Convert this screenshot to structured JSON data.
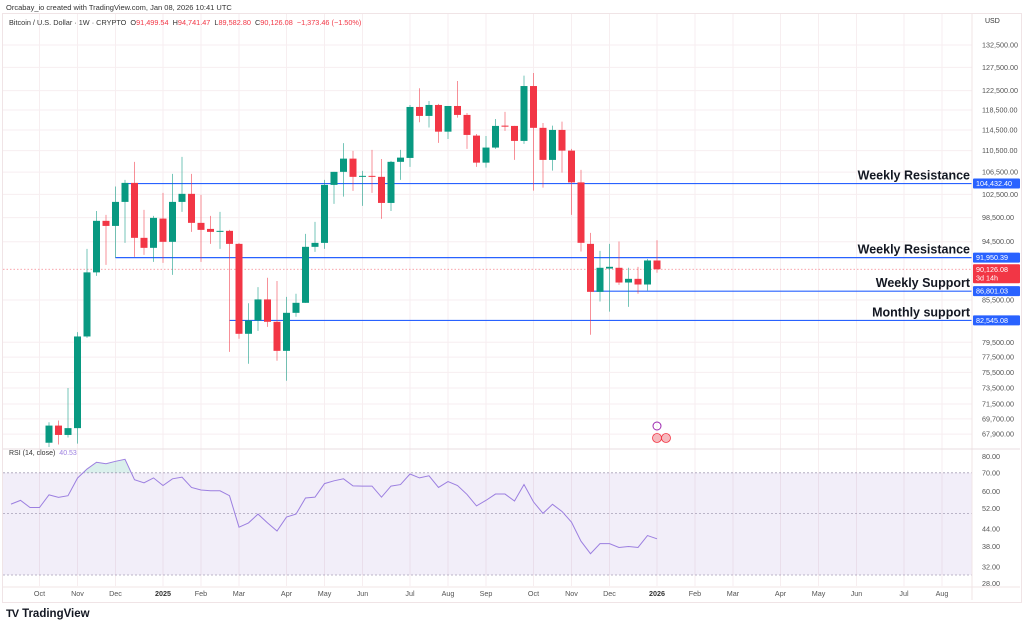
{
  "credit": "Orcabay_io created with TradingView.com, Jan 08, 2026 10:41 UTC",
  "symbol": {
    "title": "Bitcoin / U.S. Dollar · 1W · CRYPTO",
    "open_label": "O",
    "open": "91,499.54",
    "high_label": "H",
    "high": "94,741.47",
    "low_label": "L",
    "low": "89,582.80",
    "close_label": "C",
    "close": "90,126.08",
    "change": "−1,373.46 (−1.50%)"
  },
  "currency": "USD",
  "colors": {
    "up": "#089981",
    "down": "#f23645",
    "level": "#2962ff",
    "rsi": "#9c7fe0",
    "rsi_band": "#7e57c2"
  },
  "price_axis": [
    "132,500.00",
    "127,500.00",
    "122,500.00",
    "118,500.00",
    "114,500.00",
    "110,500.00",
    "106,500.00",
    "102,500.00",
    "98,500.00",
    "94,500.00",
    "85,500.00",
    "79,500.00",
    "77,500.00",
    "75,500.00",
    "73,500.00",
    "71,500.00",
    "69,700.00",
    "67,900.00"
  ],
  "price_axis_values": [
    132500,
    127500,
    122500,
    118500,
    114500,
    110500,
    106500,
    102500,
    98500,
    94500,
    85500,
    79500,
    77500,
    75500,
    73500,
    71500,
    69700,
    67900
  ],
  "levels": [
    {
      "label": "Weekly Resistance",
      "price": 104432.4,
      "tag": "104,432.40",
      "from_bar": 8
    },
    {
      "label": "Weekly Resistance",
      "price": 91950.39,
      "tag": "91,950.39",
      "from_bar": 7
    },
    {
      "label": "Weekly Support",
      "price": 86801.03,
      "tag": "86,801.03",
      "from_bar": 57
    },
    {
      "label": "Monthly support",
      "price": 82545.08,
      "tag": "82,545.08",
      "from_bar": 19
    }
  ],
  "current_price": {
    "price": 90126.08,
    "tag": "90,126.08",
    "countdown": "3d 14h"
  },
  "time_axis": [
    {
      "label": "Oct",
      "bar": -1
    },
    {
      "label": "Nov",
      "bar": 3
    },
    {
      "label": "Dec",
      "bar": 7
    },
    {
      "label": "2025",
      "bar": 12,
      "bold": true
    },
    {
      "label": "Feb",
      "bar": 16
    },
    {
      "label": "Mar",
      "bar": 20
    },
    {
      "label": "Apr",
      "bar": 25
    },
    {
      "label": "May",
      "bar": 29
    },
    {
      "label": "Jun",
      "bar": 33
    },
    {
      "label": "Jul",
      "bar": 38
    },
    {
      "label": "Aug",
      "bar": 42
    },
    {
      "label": "Sep",
      "bar": 46
    },
    {
      "label": "Oct",
      "bar": 51
    },
    {
      "label": "Nov",
      "bar": 55
    },
    {
      "label": "Dec",
      "bar": 59
    },
    {
      "label": "2026",
      "bar": 64,
      "bold": true
    },
    {
      "label": "Feb",
      "bar": 68
    },
    {
      "label": "Mar",
      "bar": 72
    },
    {
      "label": "Apr",
      "bar": 77
    },
    {
      "label": "May",
      "bar": 81
    },
    {
      "label": "Jun",
      "bar": 85
    },
    {
      "label": "Jul",
      "bar": 90
    },
    {
      "label": "Aug",
      "bar": 94
    }
  ],
  "chart_data": {
    "type": "candlestick",
    "title": "Bitcoin / U.S. Dollar · 1W · CRYPTO",
    "y_scale": "log",
    "ohlc": [
      [
        66900,
        69300,
        66300,
        68900
      ],
      [
        68900,
        69500,
        66700,
        67800
      ],
      [
        67800,
        73500,
        67500,
        68600
      ],
      [
        68600,
        80900,
        66800,
        80300
      ],
      [
        80300,
        93350,
        80100,
        89650
      ],
      [
        89650,
        99630,
        89120,
        97950
      ],
      [
        97950,
        98960,
        90820,
        97100
      ],
      [
        97100,
        103900,
        91920,
        101190
      ],
      [
        101190,
        105090,
        94310,
        104550
      ],
      [
        104550,
        108400,
        92070,
        95130
      ],
      [
        95130,
        99810,
        92390,
        93510
      ],
      [
        93510,
        98790,
        91290,
        98450
      ],
      [
        98330,
        102770,
        91130,
        94480
      ],
      [
        94480,
        106180,
        89270,
        101190
      ],
      [
        101190,
        109320,
        99460,
        102600
      ],
      [
        102600,
        106180,
        96110,
        97610
      ],
      [
        97610,
        102420,
        91290,
        96440
      ],
      [
        96600,
        98790,
        94150,
        96110
      ],
      [
        96110,
        99460,
        93350,
        96280
      ],
      [
        96280,
        96440,
        78210,
        94150
      ],
      [
        94150,
        94310,
        79980,
        80670
      ],
      [
        80670,
        85020,
        76620,
        82530
      ],
      [
        82530,
        87400,
        81080,
        85580
      ],
      [
        85580,
        88820,
        81640,
        82350
      ],
      [
        82350,
        88330,
        77020,
        78340
      ],
      [
        78340,
        85960,
        74420,
        83630
      ],
      [
        83630,
        86410,
        83060,
        85080
      ],
      [
        85080,
        95780,
        85080,
        93670
      ],
      [
        93670,
        97770,
        92870,
        94310
      ],
      [
        94310,
        105090,
        93350,
        104190
      ],
      [
        104190,
        106550,
        100840,
        106550
      ],
      [
        106550,
        111950,
        102120,
        109000
      ],
      [
        109000,
        110460,
        103120,
        105640
      ],
      [
        105640,
        106730,
        100500,
        105820
      ],
      [
        105820,
        110640,
        102770,
        105640
      ],
      [
        105640,
        108940,
        98280,
        101010
      ],
      [
        101010,
        108580,
        99630,
        108400
      ],
      [
        108400,
        110640,
        105090,
        109190
      ],
      [
        109130,
        119530,
        107460,
        119120
      ],
      [
        119120,
        123020,
        116030,
        117300
      ],
      [
        117300,
        120350,
        115000,
        119530
      ],
      [
        119530,
        119740,
        111990,
        114170
      ],
      [
        114170,
        119320,
        112750,
        119320
      ],
      [
        119320,
        124550,
        116960,
        117500
      ],
      [
        117500,
        117900,
        110830,
        113530
      ],
      [
        113400,
        113720,
        107460,
        108250
      ],
      [
        108250,
        113330,
        107330,
        111090
      ],
      [
        111090,
        116690,
        110830,
        115300
      ],
      [
        115360,
        118110,
        114320,
        115150
      ],
      [
        115300,
        115300,
        108760,
        112370
      ],
      [
        112370,
        125700,
        111800,
        123480
      ],
      [
        123480,
        126280,
        103170,
        114920
      ],
      [
        114920,
        115890,
        103710,
        108760
      ],
      [
        108760,
        115360,
        106780,
        114510
      ],
      [
        114510,
        116150,
        106410,
        110510
      ],
      [
        110510,
        110830,
        98960,
        104640
      ],
      [
        104640,
        106910,
        92920,
        94320
      ],
      [
        94150,
        95950,
        80530,
        86700
      ],
      [
        86700,
        93030,
        85270,
        90360
      ],
      [
        90240,
        94150,
        83800,
        90510
      ],
      [
        90360,
        94530,
        87750,
        88100
      ],
      [
        88100,
        90360,
        84490,
        88660
      ],
      [
        88660,
        90510,
        86410,
        87800
      ],
      [
        87800,
        91760,
        86900,
        91500
      ],
      [
        91499.54,
        94741.47,
        89582.8,
        90126.08
      ]
    ],
    "rsi": {
      "title": "RSI (14, close)",
      "value": "40.53",
      "start_bar": -4,
      "values": [
        54.0,
        55.7,
        52.5,
        52.5,
        58.3,
        57.1,
        57.9,
        67.0,
        72.2,
        76.4,
        75.5,
        77.0,
        78.3,
        66.1,
        64.4,
        67.1,
        63.0,
        66.6,
        67.5,
        62.0,
        60.7,
        60.3,
        60.3,
        57.9,
        44.6,
        46.2,
        49.7,
        46.2,
        43.2,
        48.5,
        49.7,
        56.8,
        57.2,
        64.0,
        65.5,
        66.6,
        62.8,
        62.7,
        62.7,
        57.2,
        62.7,
        63.5,
        69.3,
        67.1,
        68.3,
        62.0,
        65.1,
        63.0,
        58.5,
        53.2,
        55.7,
        58.7,
        58.7,
        55.4,
        63.5,
        55.0,
        50.0,
        53.9,
        50.8,
        46.5,
        39.7,
        35.8,
        38.9,
        38.9,
        37.7,
        38.0,
        37.7,
        41.6,
        40.5
      ],
      "axis": [
        "80.00",
        "70.00",
        "60.00",
        "52.00",
        "44.00",
        "38.00",
        "32.00",
        "28.00"
      ],
      "axis_values": [
        80,
        70,
        60,
        52,
        44,
        38,
        32,
        28
      ],
      "upper_band": 70,
      "middle_band": 50,
      "lower_band": 30
    }
  },
  "brand": "TradingView"
}
